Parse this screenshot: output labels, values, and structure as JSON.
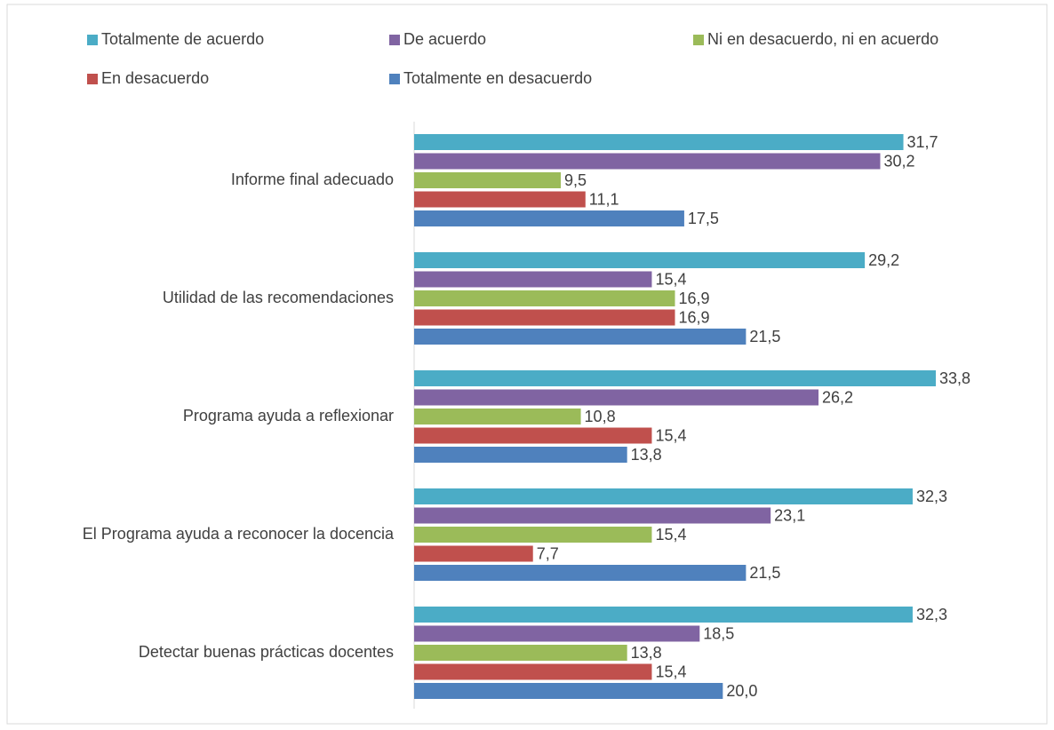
{
  "chart_data": {
    "type": "bar",
    "orientation": "horizontal",
    "categories": [
      "Informe final adecuado",
      "Utilidad de las recomendaciones",
      "Programa ayuda a reflexionar",
      "El Programa ayuda a reconocer la docencia",
      "Detectar buenas prácticas docentes"
    ],
    "series": [
      {
        "name": "Totalmente de acuerdo",
        "color": "#4bacc6",
        "values": [
          31.7,
          29.2,
          33.8,
          32.3,
          32.3
        ],
        "value_labels": [
          "31,7",
          "29,2",
          "33,8",
          "32,3",
          "32,3"
        ]
      },
      {
        "name": "De acuerdo",
        "color": "#8064a2",
        "values": [
          30.2,
          15.4,
          26.2,
          23.1,
          18.5
        ],
        "value_labels": [
          "30,2",
          "15,4",
          "26,2",
          "23,1",
          "18,5"
        ]
      },
      {
        "name": "Ni en desacuerdo, ni en acuerdo",
        "color": "#9bbb59",
        "values": [
          9.5,
          16.9,
          10.8,
          15.4,
          13.8
        ],
        "value_labels": [
          "9,5",
          "16,9",
          "10,8",
          "15,4",
          "13,8"
        ]
      },
      {
        "name": "En desacuerdo",
        "color": "#c0504d",
        "values": [
          11.1,
          16.9,
          15.4,
          7.7,
          15.4
        ],
        "value_labels": [
          "11,1",
          "16,9",
          "15,4",
          "7,7",
          "15,4"
        ]
      },
      {
        "name": "Totalmente en desacuerdo",
        "color": "#4f81bd",
        "values": [
          17.5,
          21.5,
          13.8,
          21.5,
          20.0
        ],
        "value_labels": [
          "17,5",
          "21,5",
          "13,8",
          "21,5",
          "20,0"
        ]
      }
    ],
    "legend": "top"
  }
}
